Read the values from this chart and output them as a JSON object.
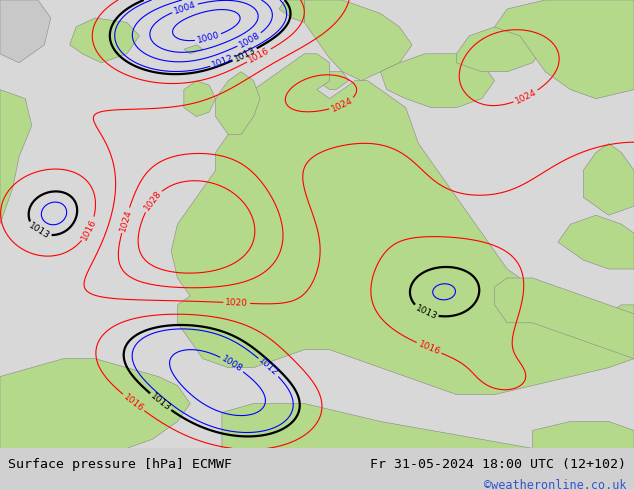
{
  "title_left": "Surface pressure [hPa] ECMWF",
  "title_right": "Fr 31-05-2024 18:00 UTC (12+102)",
  "credit": "©weatheronline.co.uk",
  "bg_color": "#d8d8d8",
  "land_color": "#b5d98a",
  "sea_color": "#d0d8e0",
  "gray_land_color": "#b0b0b0",
  "bottom_bar_color": "#d0d0d0",
  "title_fontsize": 9.5,
  "credit_fontsize": 8.5,
  "fig_width": 6.34,
  "fig_height": 4.9,
  "dpi": 100,
  "contour_levels": [
    1000,
    1004,
    1008,
    1012,
    1013,
    1016,
    1020,
    1024,
    1028
  ],
  "blue_levels": [
    1000,
    1004,
    1008,
    1012
  ],
  "black_levels": [
    1013
  ],
  "red_levels": [
    1016,
    1020,
    1024,
    1028
  ]
}
